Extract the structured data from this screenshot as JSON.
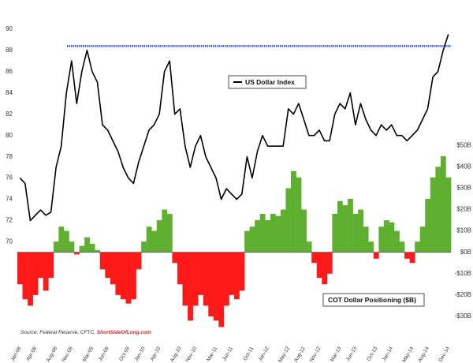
{
  "chart_data": {
    "type": "line_bar",
    "legend_line": "US Dollar Index",
    "legend_bars": "COT Dollar Positioning ($B)",
    "source": "Source: Federal Reserve, CFTC,",
    "source_link": "ShortSideOfLong.com",
    "categories": [
      "Jan-08",
      null,
      null,
      "Apr-08",
      null,
      null,
      null,
      "Aug-08",
      null,
      null,
      "Nov-08",
      null,
      null,
      null,
      "Mar-09",
      null,
      null,
      "Jun-09",
      null,
      null,
      null,
      "Oct-09",
      null,
      null,
      "Jan-10",
      null,
      null,
      "Apr-10",
      null,
      null,
      null,
      "Aug-10",
      null,
      null,
      "Nov-10",
      null,
      null,
      null,
      "Mar-11",
      null,
      null,
      "Jun-11",
      null,
      null,
      null,
      "Oct-11",
      null,
      null,
      "Jan-12",
      null,
      null,
      null,
      "May-12",
      null,
      null,
      "Aug-12",
      null,
      null,
      "Nov-12",
      null,
      null,
      null,
      "Mar-13",
      null,
      null,
      "Jun-13",
      null,
      null,
      null,
      "Oct-13",
      null,
      null,
      "Jan-14",
      null,
      null,
      null,
      "May-14",
      null,
      null,
      "Aug-14",
      null,
      null,
      null,
      "Dec-14"
    ],
    "series": [
      {
        "name": "US Dollar Index",
        "color": "#000000",
        "values": [
          76,
          75.5,
          72,
          72.5,
          73,
          72.5,
          72.8,
          77,
          79,
          84,
          87,
          83,
          86,
          88,
          86,
          85,
          81,
          80.5,
          79.5,
          78.5,
          77,
          76,
          75.5,
          77.5,
          79,
          80.5,
          81,
          82,
          86,
          87,
          82,
          82.5,
          79,
          77,
          79,
          80,
          78,
          77,
          76,
          74,
          75,
          74.5,
          74,
          74.5,
          78,
          76,
          78.5,
          80,
          79,
          79,
          79,
          79,
          82.5,
          82,
          83,
          81.5,
          80,
          80,
          80.5,
          79.5,
          79.5,
          82,
          83,
          82.5,
          84,
          81,
          83,
          81.5,
          80.5,
          80,
          81,
          80.5,
          81,
          80,
          80,
          79.5,
          80,
          80.5,
          81.5,
          82.5,
          85.5,
          86,
          88,
          89.5
        ]
      },
      {
        "name": "COT Dollar Positioning",
        "axis": "y2",
        "color": "#5fb030",
        "negative_color": "#ff1a1a",
        "values": [
          -15,
          -22,
          -25,
          -20,
          -12,
          -18,
          -12,
          5,
          12,
          10,
          5,
          -1,
          3,
          7,
          4,
          1,
          -8,
          -12,
          -15,
          -20,
          -22,
          -24,
          -22,
          -8,
          5,
          12,
          10,
          15,
          20,
          18,
          -5,
          -15,
          -25,
          -32,
          -25,
          -20,
          -25,
          -30,
          -32,
          -35,
          -25,
          -20,
          -22,
          -18,
          10,
          12,
          15,
          18,
          15,
          18,
          17,
          20,
          30,
          38,
          35,
          20,
          5,
          -5,
          -12,
          -15,
          -10,
          18,
          24,
          22,
          25,
          18,
          20,
          12,
          5,
          -3,
          12,
          15,
          14,
          10,
          5,
          -3,
          -5,
          5,
          12,
          25,
          35,
          40,
          45,
          35
        ]
      }
    ],
    "ref_line": {
      "value": 88.4,
      "color": "#3344ff"
    },
    "ylim": [
      61,
      90.5
    ],
    "yticks": [
      70,
      72,
      74,
      76,
      78,
      80,
      82,
      84,
      86,
      88,
      90
    ],
    "y2lim": [
      -40,
      107
    ],
    "y2ticks": [
      {
        "value": 50,
        "label": "$50B"
      },
      {
        "value": 40,
        "label": "$40B"
      },
      {
        "value": 30,
        "label": "$30B"
      },
      {
        "value": 20,
        "label": "$20B"
      },
      {
        "value": 10,
        "label": "$10B"
      },
      {
        "value": 0,
        "label": "$0B"
      },
      {
        "value": -10,
        "label": "-$10B"
      },
      {
        "value": -20,
        "label": "-$20B"
      },
      {
        "value": -30,
        "label": "-$30B"
      }
    ]
  }
}
